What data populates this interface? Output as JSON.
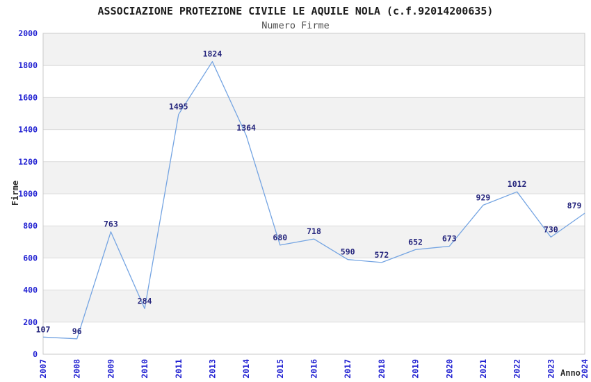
{
  "chart_data": {
    "type": "line",
    "title": "ASSOCIAZIONE PROTEZIONE CIVILE LE AQUILE NOLA (c.f.92014200635)",
    "subtitle": "Numero Firme",
    "xlabel": "Anno",
    "ylabel": "Firme",
    "categories": [
      "2007",
      "2008",
      "2009",
      "2010",
      "2011",
      "2013",
      "2014",
      "2015",
      "2016",
      "2017",
      "2018",
      "2019",
      "2020",
      "2021",
      "2022",
      "2023",
      "2024"
    ],
    "values": [
      107,
      96,
      763,
      284,
      1495,
      1824,
      1364,
      680,
      718,
      590,
      572,
      652,
      673,
      929,
      1012,
      730,
      879
    ],
    "ylim": [
      0,
      2000
    ],
    "ytick_step": 200,
    "grid": true,
    "band_fill": "alternating-gray-from-top",
    "data_labels": true,
    "legend": "none",
    "x_tick_rotation": -90
  },
  "colors": {
    "background": "#ffffff",
    "band_gray": "#f2f2f2",
    "gridline": "#dcdcdc",
    "plot_border": "#c9c9c9",
    "series_line": "#74a4e2",
    "tick_label": "#2222d2",
    "data_label": "#26267d",
    "title": "#1c1c1c",
    "subtitle": "#4d4d4d",
    "axis_title": "#2e2e2e"
  }
}
